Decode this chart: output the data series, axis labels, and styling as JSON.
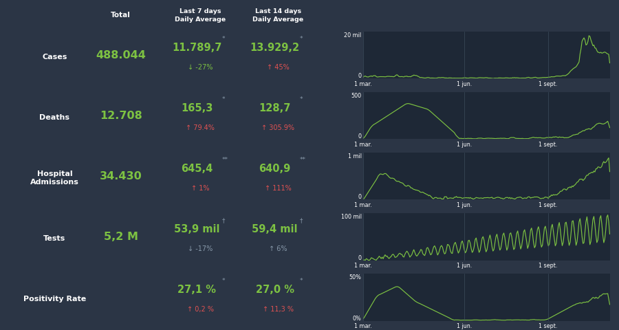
{
  "bg_color": "#2b3545",
  "chart_bg": "#1e2836",
  "green_color": "#7dc242",
  "white_color": "#ffffff",
  "red_color": "#e05252",
  "gray_color": "#8899aa",
  "line_color": "#4a5a6a",
  "title_row": {
    "col1": "Total",
    "col2": "Last 7 days\nDaily Average",
    "col3": "Last 14 days\nDaily Average"
  },
  "rows": [
    {
      "label": "Cases",
      "total": "488.044",
      "val7": "11.789,7",
      "val7_asterisk": "*",
      "change7": "↓ -27%",
      "change7_color": "#7dc242",
      "val14": "13.929,2",
      "val14_asterisk": "*",
      "change14": "↑ 45%",
      "change14_color": "#e05252"
    },
    {
      "label": "Deaths",
      "total": "12.708",
      "val7": "165,3",
      "val7_asterisk": "*",
      "change7": "↑ 79.4%",
      "change7_color": "#e05252",
      "val14": "128,7",
      "val14_asterisk": "*",
      "change14": "↑ 305.9%",
      "change14_color": "#e05252"
    },
    {
      "label": "Hospital\nAdmissions",
      "total": "34.430",
      "val7": "645,4",
      "val7_asterisk": "**",
      "change7": "↑ 1%",
      "change7_color": "#e05252",
      "val14": "640,9",
      "val14_asterisk": "**",
      "change14": "↑ 111%",
      "change14_color": "#e05252"
    },
    {
      "label": "Tests",
      "total": "5,2 M",
      "val7": "53,9 mil",
      "val7_asterisk": "†",
      "change7": "↓ -17%",
      "change7_color": "#8899aa",
      "val14": "59,4 mil",
      "val14_asterisk": "†",
      "change14": "↑ 6%",
      "change14_color": "#8899aa"
    },
    {
      "label": "Positivity Rate",
      "total": "",
      "val7": "27,1 %",
      "val7_asterisk": "*",
      "change7": "↑ 0,2 %",
      "change7_color": "#e05252",
      "val14": "27,0 %",
      "val14_asterisk": "*",
      "change14": "↑ 11,3 %",
      "change14_color": "#e05252"
    }
  ],
  "chart_ymaxes": [
    22000,
    500,
    1100,
    110000,
    0.52
  ],
  "ytop_labels": [
    "20 mil",
    "500",
    "1 mil",
    "100 mil",
    "50%"
  ],
  "y0_labels": [
    "0",
    "0",
    "0",
    "0",
    "0%"
  ],
  "x_labels": [
    "1 mar.",
    "1 jun.",
    "1 sept."
  ],
  "vline_pos": [
    0.0,
    0.41,
    0.75
  ]
}
